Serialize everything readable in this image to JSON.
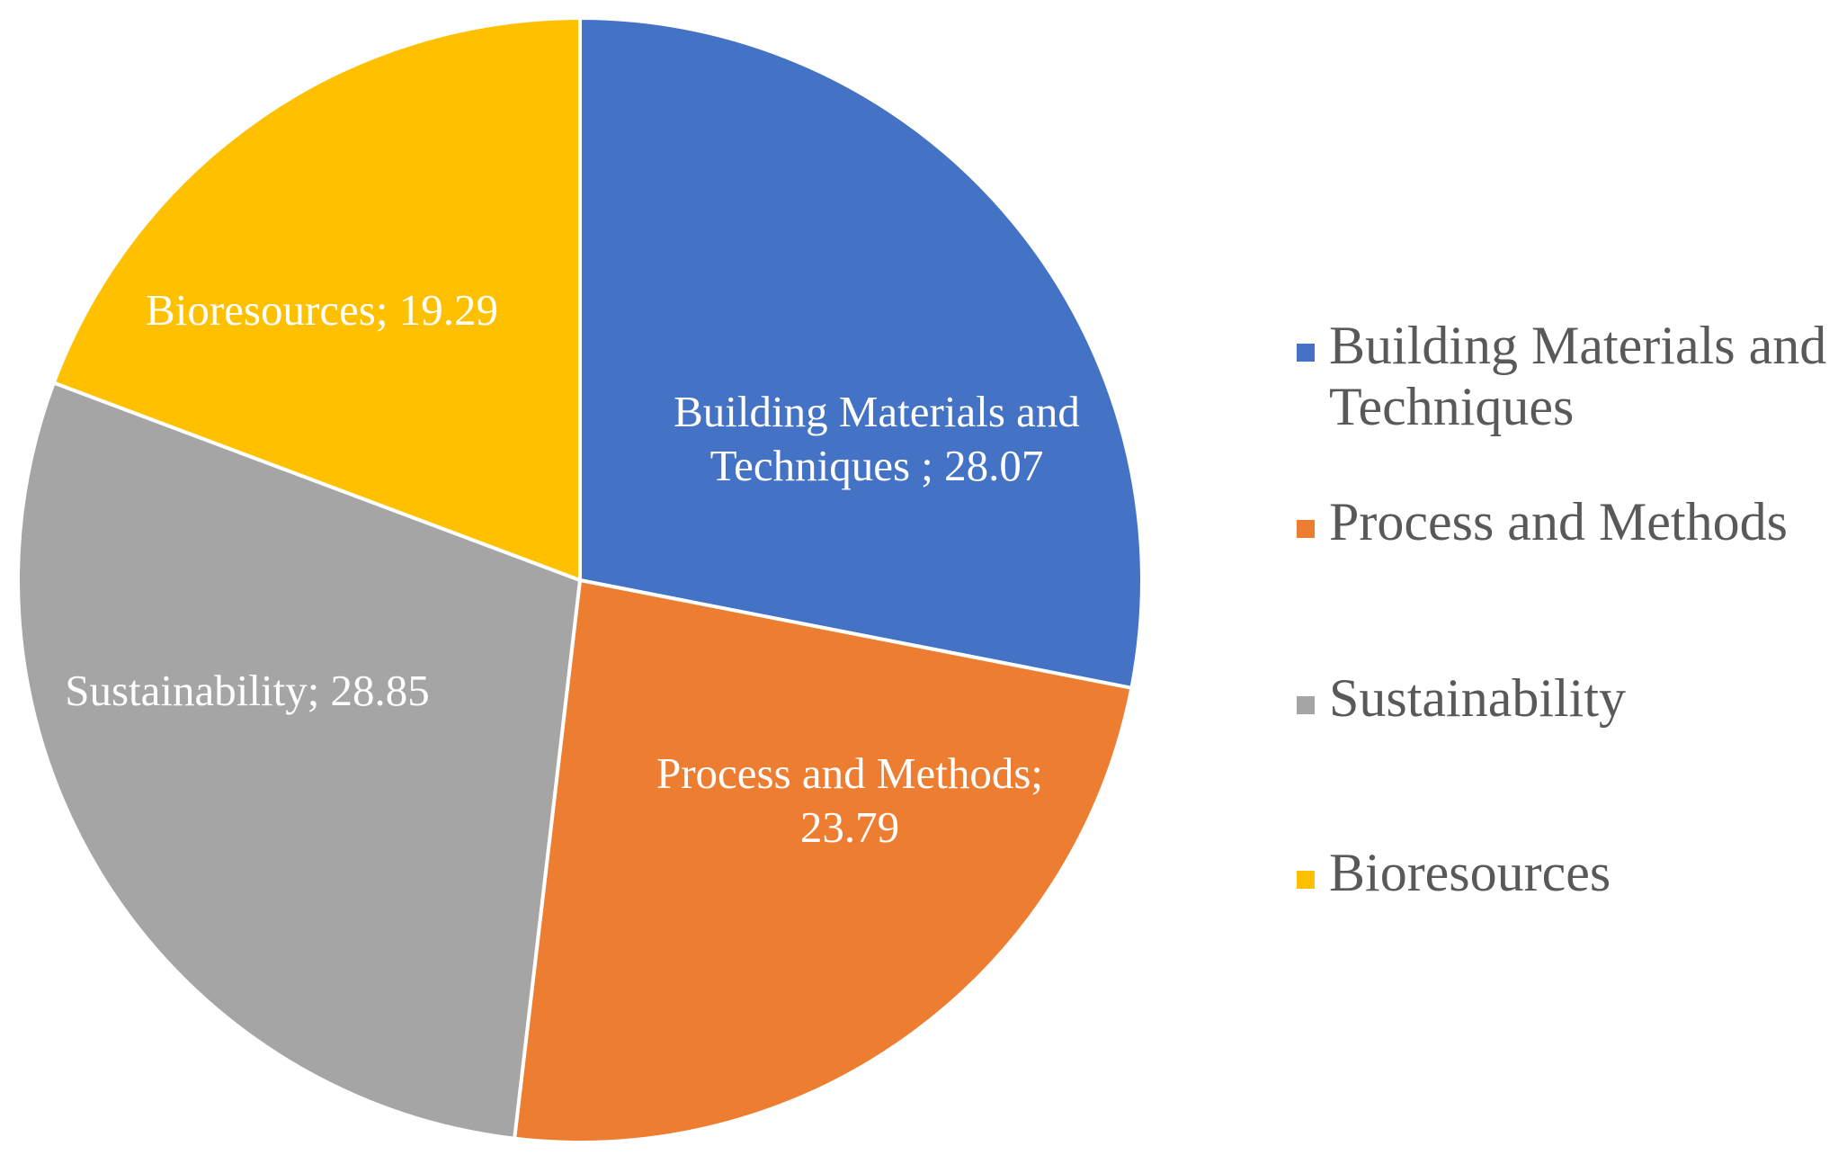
{
  "chart_data": {
    "type": "pie",
    "title": "",
    "legend_position": "right",
    "slices": [
      {
        "name": "Building Materials and Techniques",
        "value": 28.07,
        "color": "#4472C4",
        "label_lines": [
          "Building Materials and",
          "Techniques ; 28.07"
        ],
        "legend_lines": [
          "Building Materials and",
          "Techniques"
        ]
      },
      {
        "name": "Process and Methods",
        "value": 23.79,
        "color": "#ED7D31",
        "label_lines": [
          "Process and Methods;",
          "23.79"
        ],
        "legend_lines": [
          "Process and Methods"
        ]
      },
      {
        "name": "Sustainability",
        "value": 28.85,
        "color": "#A5A5A5",
        "label_lines": [
          "Sustainability; 28.85"
        ],
        "legend_lines": [
          "Sustainability"
        ]
      },
      {
        "name": "Bioresources",
        "value": 19.29,
        "color": "#FFC000",
        "label_lines": [
          "Bioresources; 19.29"
        ],
        "legend_lines": [
          "Bioresources"
        ]
      }
    ]
  }
}
